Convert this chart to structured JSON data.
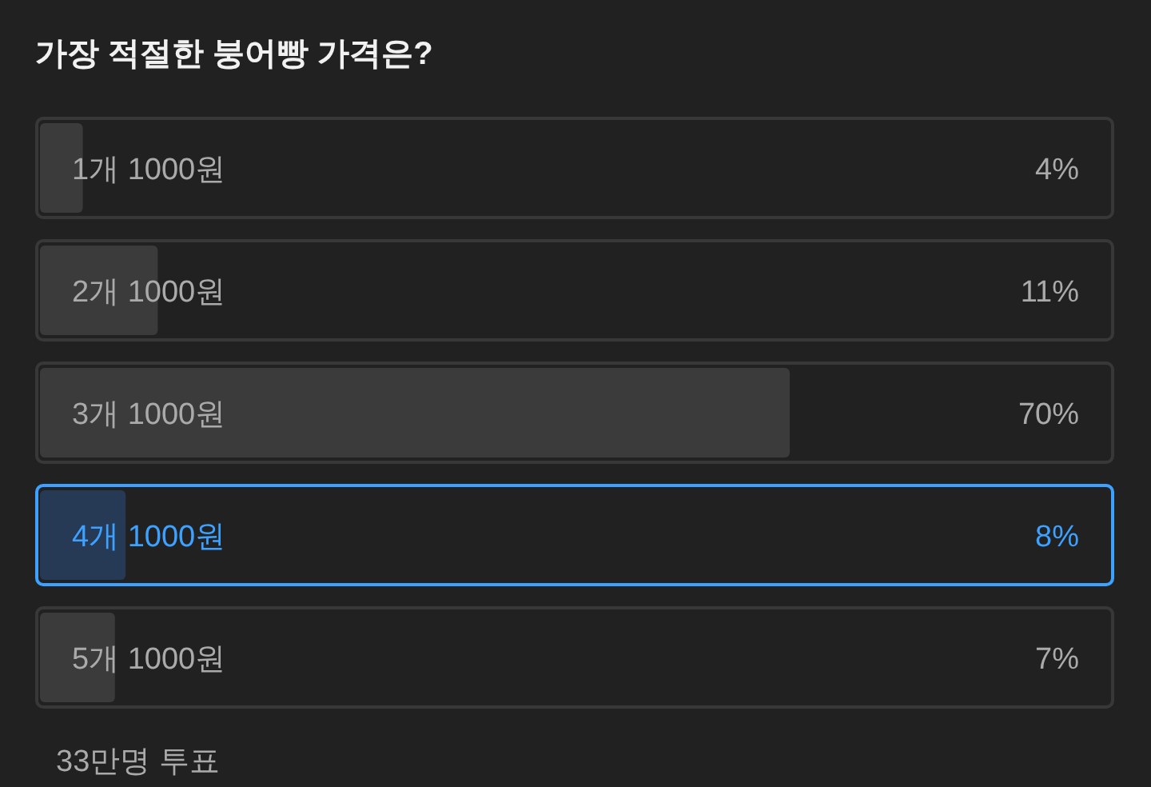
{
  "chart_data": {
    "type": "bar",
    "orientation": "horizontal",
    "title": "가장 적절한 붕어빵 가격은?",
    "categories": [
      "1개 1000원",
      "2개 1000원",
      "3개 1000원",
      "4개 1000원",
      "5개 1000원"
    ],
    "values": [
      4,
      11,
      70,
      8,
      7
    ],
    "value_labels": [
      "4%",
      "11%",
      "70%",
      "8%",
      "7%"
    ],
    "colors": [
      "#3b3b3b",
      "#3b3b3b",
      "#3b3b3b",
      "#263a56",
      "#3b3b3b"
    ],
    "xlim": [
      0,
      100
    ],
    "annotations": [
      "33만명 투표"
    ]
  }
}
